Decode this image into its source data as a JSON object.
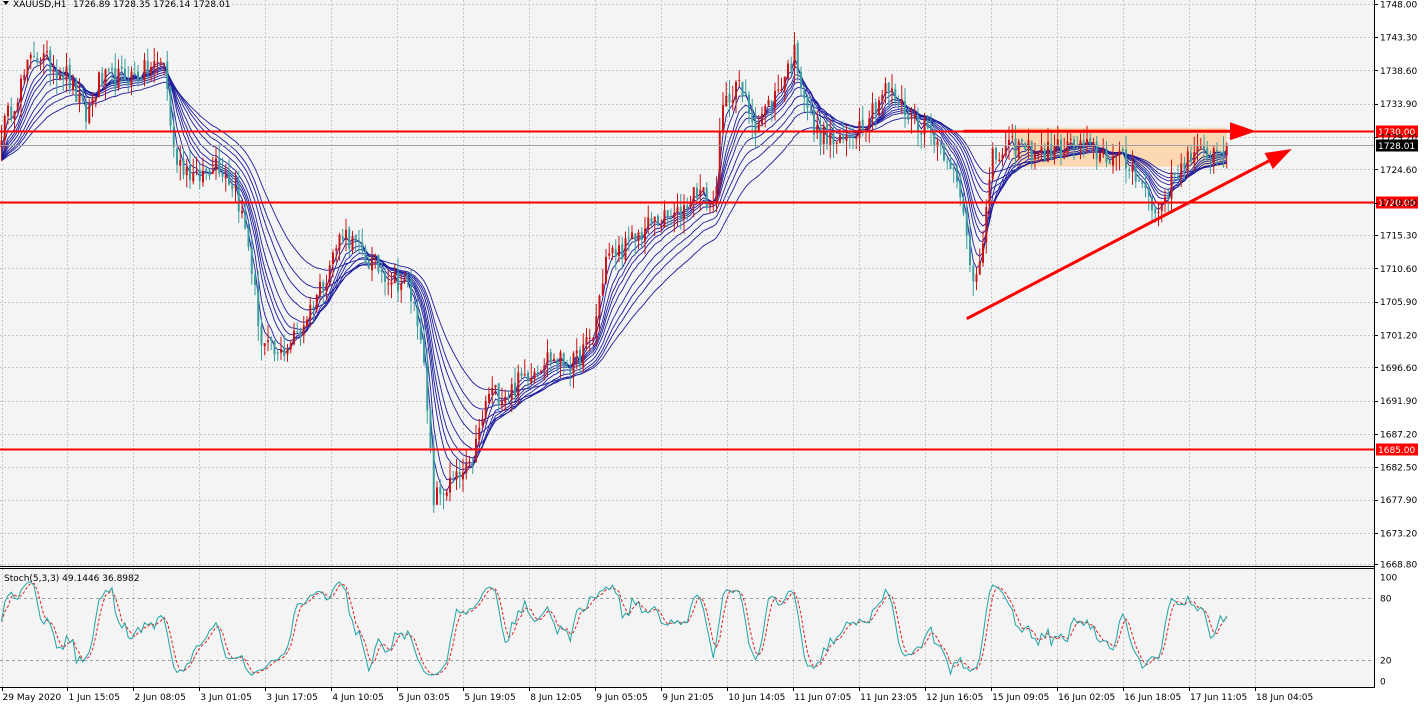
{
  "header": {
    "symbol": "XAUUSD,H1",
    "ohlc": "1726.89 1728.35 1726.14 1728.01"
  },
  "colors": {
    "background": "#f4f4f4",
    "bull": "#c81414",
    "bear": "#3a9e9e",
    "ma": "#1c1c9c",
    "level": "#ff0000",
    "zone": "#fcd2a4",
    "stoch_main": "#20a4a4",
    "stoch_signal": "#e02020"
  },
  "chart_data": [
    {
      "type": "candlestick",
      "title": "XAUUSD,H1",
      "ylim": [
        1668.8,
        1748.0
      ],
      "grid": true,
      "price_ticks": [
        "1748.00",
        "1743.30",
        "1738.60",
        "1733.90",
        "1729.20",
        "1724.60",
        "1719.90",
        "1715.30",
        "1710.60",
        "1705.90",
        "1701.20",
        "1696.60",
        "1691.90",
        "1687.20",
        "1682.50",
        "1677.90",
        "1673.20",
        "1668.80"
      ],
      "time_ticks": [
        "29 May 2020",
        "1 Jun 15:05",
        "2 Jun 08:05",
        "3 Jun 01:05",
        "3 Jun 17:05",
        "4 Jun 10:05",
        "5 Jun 03:05",
        "5 Jun 19:05",
        "8 Jun 12:05",
        "9 Jun 05:05",
        "9 Jun 21:05",
        "10 Jun 14:05",
        "11 Jun 07:05",
        "11 Jun 23:05",
        "12 Jun 16:05",
        "15 Jun 09:05",
        "16 Jun 02:05",
        "16 Jun 18:05",
        "17 Jun 11:05",
        "18 Jun 04:05"
      ],
      "levels": [
        {
          "label": "1730.00",
          "value": 1730.0
        },
        {
          "label": "1720.00",
          "value": 1720.0
        },
        {
          "label": "1685.00",
          "value": 1685.0
        }
      ],
      "current_price": {
        "label": "1728.01",
        "value": 1728.01
      },
      "close_path": [
        [
          0,
          1730
        ],
        [
          10,
          1741
        ],
        [
          20,
          1738
        ],
        [
          26,
          1732
        ],
        [
          30,
          1737
        ],
        [
          42,
          1738
        ],
        [
          50,
          1740
        ],
        [
          53,
          1727
        ],
        [
          60,
          1723
        ],
        [
          66,
          1726
        ],
        [
          72,
          1722
        ],
        [
          76,
          1714
        ],
        [
          80,
          1700
        ],
        [
          85,
          1698
        ],
        [
          92,
          1702
        ],
        [
          100,
          1710
        ],
        [
          105,
          1716
        ],
        [
          112,
          1712
        ],
        [
          118,
          1710
        ],
        [
          125,
          1708
        ],
        [
          129,
          1702
        ],
        [
          133,
          1678
        ],
        [
          138,
          1680
        ],
        [
          144,
          1682
        ],
        [
          150,
          1693
        ],
        [
          156,
          1693
        ],
        [
          162,
          1696
        ],
        [
          168,
          1698
        ],
        [
          176,
          1697
        ],
        [
          182,
          1701
        ],
        [
          186,
          1712
        ],
        [
          193,
          1714
        ],
        [
          200,
          1717
        ],
        [
          208,
          1718
        ],
        [
          214,
          1722
        ],
        [
          219,
          1719
        ],
        [
          222,
          1733
        ],
        [
          226,
          1737
        ],
        [
          232,
          1731
        ],
        [
          238,
          1735
        ],
        [
          244,
          1741
        ],
        [
          250,
          1730
        ],
        [
          258,
          1728
        ],
        [
          266,
          1732
        ],
        [
          272,
          1736
        ],
        [
          280,
          1732
        ],
        [
          286,
          1730
        ],
        [
          292,
          1726
        ],
        [
          296,
          1718
        ],
        [
          299,
          1709
        ],
        [
          302,
          1715
        ],
        [
          305,
          1726
        ],
        [
          312,
          1728
        ],
        [
          320,
          1727
        ],
        [
          330,
          1728
        ],
        [
          338,
          1727
        ],
        [
          344,
          1726
        ],
        [
          350,
          1724
        ],
        [
          355,
          1718
        ],
        [
          359,
          1722
        ],
        [
          364,
          1726
        ],
        [
          372,
          1727
        ],
        [
          377,
          1728
        ]
      ],
      "annotations": [
        {
          "type": "rectangle",
          "label": "consolidation zone",
          "x": [
            311,
            377
          ],
          "y": [
            1725.0,
            1730.5
          ]
        },
        {
          "type": "arrow",
          "label": "horizontal arrow",
          "from": [
            296,
            1730.0
          ],
          "to": [
            386,
            1730.0
          ]
        },
        {
          "type": "arrow",
          "label": "rising trend arrow",
          "from": [
            297,
            1703.5
          ],
          "to": [
            397,
            1727.5
          ]
        }
      ],
      "moving_averages": {
        "count": 10,
        "note": "ribbon of moving averages"
      }
    },
    {
      "type": "line",
      "title": "Stoch(5,3,3) 49.1446 36.8982",
      "ylim": [
        0,
        100
      ],
      "levels": [
        80,
        20
      ],
      "axis_ticks": [
        "100",
        "80",
        "20",
        "0"
      ],
      "series": [
        {
          "name": "main"
        },
        {
          "name": "signal"
        }
      ]
    }
  ]
}
